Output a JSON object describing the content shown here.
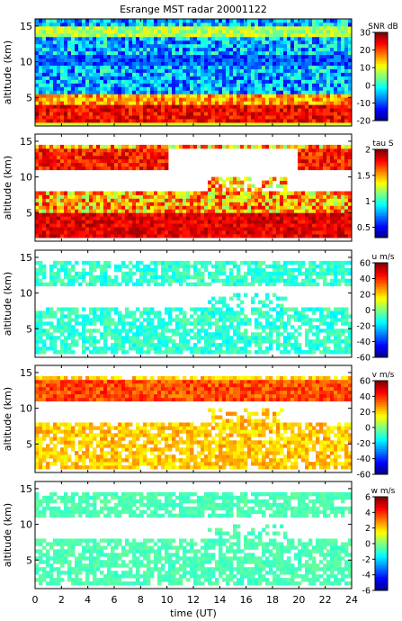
{
  "chart_data": [
    {
      "type": "heatmap",
      "title": "Esrange MST radar 20001122",
      "ylabel": "altitude (km)",
      "yticks": [
        5,
        10,
        15
      ],
      "ylim": [
        1,
        16
      ],
      "xlim": [
        0,
        24
      ],
      "colorbar": {
        "label": "SNR dB",
        "ticks": [
          30,
          20,
          10,
          0,
          -10,
          -20
        ],
        "range": [
          -20,
          30
        ]
      }
    },
    {
      "type": "heatmap",
      "ylabel": "altitude (km)",
      "yticks": [
        5,
        10,
        15
      ],
      "ylim": [
        1,
        16
      ],
      "xlim": [
        0,
        24
      ],
      "colorbar": {
        "label": "tau S",
        "ticks": [
          2,
          1.5,
          1,
          0.5
        ],
        "range": [
          0.3,
          2
        ]
      }
    },
    {
      "type": "heatmap",
      "ylabel": "altitude (km)",
      "yticks": [
        5,
        10,
        15
      ],
      "ylim": [
        1,
        16
      ],
      "xlim": [
        0,
        24
      ],
      "colorbar": {
        "label": "u m/s",
        "ticks": [
          60,
          40,
          20,
          0,
          -20,
          -40,
          -60
        ],
        "range": [
          -60,
          60
        ]
      }
    },
    {
      "type": "heatmap",
      "ylabel": "altitude (km)",
      "yticks": [
        5,
        10,
        15
      ],
      "ylim": [
        1,
        16
      ],
      "xlim": [
        0,
        24
      ],
      "colorbar": {
        "label": "v m/s",
        "ticks": [
          60,
          40,
          20,
          0,
          -20,
          -40,
          -60
        ],
        "range": [
          -60,
          60
        ]
      }
    },
    {
      "type": "heatmap",
      "ylabel": "altitude (km)",
      "yticks": [
        5,
        10,
        15
      ],
      "ylim": [
        1,
        16
      ],
      "xlim": [
        0,
        24
      ],
      "xlabel": "time (UT)",
      "xticks": [
        0,
        2,
        4,
        6,
        8,
        10,
        12,
        14,
        16,
        18,
        20,
        22,
        24
      ],
      "colorbar": {
        "label": "w m/s",
        "ticks": [
          6,
          4,
          2,
          0,
          -2,
          -4,
          -6
        ],
        "range": [
          -6,
          6
        ]
      }
    }
  ]
}
